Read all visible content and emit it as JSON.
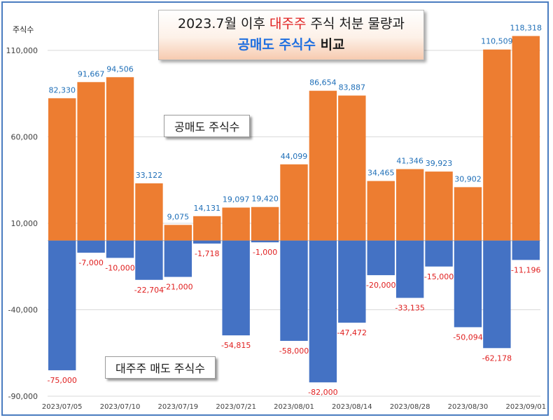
{
  "title": {
    "part1": "2023.7월 이후 ",
    "part2": "대주주",
    "part3": " 주식 처분 물량과",
    "part4": "공매도 주식수",
    "part5": " 비교"
  },
  "colors": {
    "short": "#ed7d31",
    "major": "#4472c4",
    "short_label": "#1f6fb8",
    "major_label": "#e02020"
  },
  "chart_data": {
    "type": "bar",
    "title": "2023.7월 이후 대주주 주식 처분 물량과 공매도 주식수 비교",
    "ylabel": "주식수",
    "ylim": [
      -90000,
      115000
    ],
    "yticks": [
      -90000,
      -40000,
      10000,
      60000,
      110000
    ],
    "ytick_labels": [
      "-90,000",
      "-40,000",
      "10,000",
      "60,000",
      "110,000"
    ],
    "x_tick_labels": [
      "2023/07/05",
      "2023/07/10",
      "2023/07/19",
      "2023/07/21",
      "2023/08/01",
      "2023/08/14",
      "2023/08/28",
      "2023/08/30",
      "2023/09/01"
    ],
    "categories": [
      "1",
      "2",
      "3",
      "4",
      "5",
      "6",
      "7",
      "8",
      "9",
      "10",
      "11",
      "12",
      "13",
      "14",
      "15",
      "16",
      "17"
    ],
    "series": [
      {
        "name": "공매도 주식수",
        "values": [
          82330,
          91667,
          94506,
          33122,
          9075,
          14131,
          19097,
          19420,
          44099,
          86654,
          83887,
          34465,
          41346,
          39923,
          30902,
          110509,
          118318
        ],
        "labels": [
          "82,330",
          "91,667",
          "94,506",
          "33,122",
          "9,075",
          "14,131",
          "19,097",
          "19,420",
          "44,099",
          "86,654",
          "83,887",
          "34,465",
          "41,346",
          "39,923",
          "30,902",
          "110,509",
          "118,318"
        ]
      },
      {
        "name": "대주주 매도 주식수",
        "values": [
          -75000,
          -7000,
          -10000,
          -22704,
          -21000,
          -1718,
          -54815,
          -1000,
          -58000,
          -82000,
          -47472,
          -20000,
          -33135,
          -15000,
          -50094,
          -62178,
          -11196
        ],
        "labels": [
          "-75,000",
          "-7,000",
          "-10,000",
          "-22,704",
          "-21,000",
          "-1,718",
          "-54,815",
          "-1,000",
          "-58,000",
          "-82,000",
          "-47,472",
          "-20,000",
          "-33,135",
          "-15,000",
          "-50,094",
          "-62,178",
          "-11,196"
        ]
      }
    ],
    "annotations": [
      "공매도 주식수",
      "대주주 매도 주식수"
    ]
  }
}
